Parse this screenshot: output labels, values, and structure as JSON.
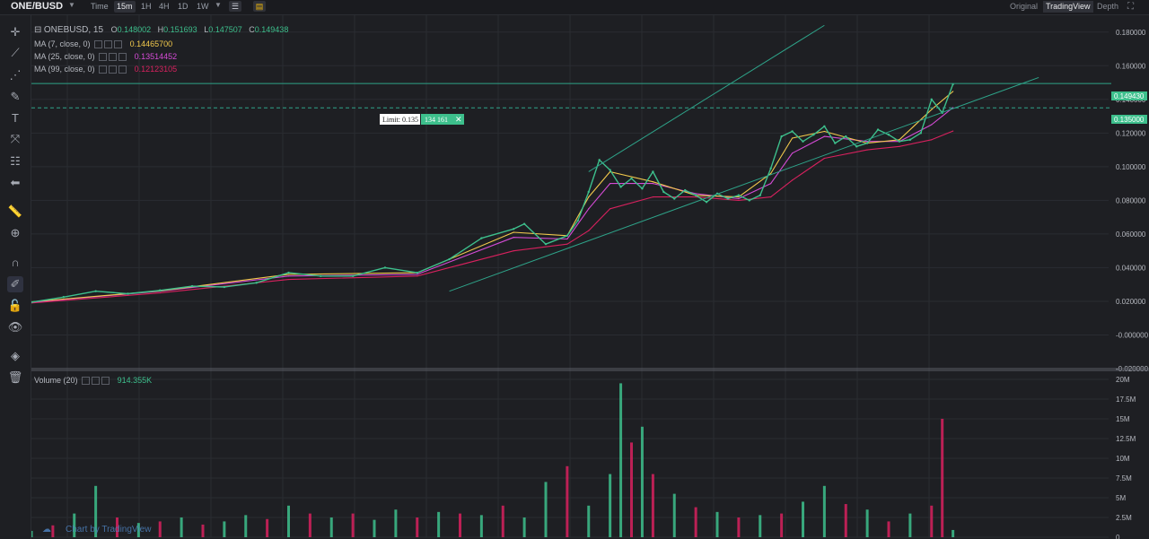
{
  "header": {
    "pair": "ONE/BUSD",
    "timeframes": [
      "Time",
      "15m",
      "1H",
      "4H",
      "1D",
      "1W"
    ],
    "active_timeframe": "15m",
    "views": [
      "Original",
      "TradingView",
      "Depth"
    ],
    "active_view": "TradingView"
  },
  "legend": {
    "symbol": "ONEBUSD, 15",
    "ohlc": {
      "open_label": "O",
      "open": "0.148002",
      "high_label": "H",
      "high": "0.151693",
      "low_label": "L",
      "low": "0.147507",
      "close_label": "C",
      "close": "0.149438"
    },
    "ma": [
      {
        "label": "MA (7, close, 0)",
        "value": "0.14465700",
        "color": "#f2c94c"
      },
      {
        "label": "MA (25, close, 0)",
        "value": "0.13514452",
        "color": "#d54bd6"
      },
      {
        "label": "MA (99, close, 0)",
        "value": "0.12123105",
        "color": "#d8215e"
      }
    ],
    "volume": {
      "label": "Volume (20)",
      "value": "914.355K",
      "color": "#3dbf8c"
    }
  },
  "order": {
    "limit_label": "Limit: 0.135",
    "qty": "134 161",
    "close_symbol": "✕"
  },
  "price_tags": {
    "last": "0.149430",
    "limit": "0.135000"
  },
  "watermark": "Chart by TradingView",
  "chart_data": [
    {
      "type": "line",
      "title": "ONEBUSD, 15",
      "ylim": [
        -0.02,
        0.19
      ],
      "y_ticks": [
        "0.180000",
        "0.160000",
        "0.140000",
        "0.120000",
        "0.100000",
        "0.080000",
        "0.060000",
        "0.040000",
        "0.020000",
        "-0.000000",
        "-0.020000"
      ],
      "y_tick_values": [
        0.18,
        0.16,
        0.14,
        0.12,
        0.1,
        0.08,
        0.06,
        0.04,
        0.02,
        0.0,
        -0.02
      ],
      "series": [
        {
          "name": "ONEBUSD",
          "color": "#3dbf8c",
          "x": [
            0,
            3,
            6,
            9,
            12,
            15,
            18,
            21,
            24,
            27,
            30,
            33,
            36,
            39,
            42,
            45,
            46,
            48,
            50,
            51,
            52,
            53,
            54,
            55,
            56,
            57,
            58,
            59,
            60,
            61,
            62,
            63,
            64,
            65,
            66,
            67,
            68,
            69,
            70,
            71,
            72,
            73,
            74,
            75,
            76,
            77,
            78,
            79,
            80,
            81,
            82,
            83,
            84,
            85,
            86
          ],
          "values": [
            0.0195,
            0.0225,
            0.026,
            0.0245,
            0.0265,
            0.029,
            0.0285,
            0.031,
            0.037,
            0.035,
            0.035,
            0.04,
            0.037,
            0.045,
            0.0575,
            0.063,
            0.066,
            0.054,
            0.059,
            0.068,
            0.085,
            0.104,
            0.098,
            0.088,
            0.093,
            0.087,
            0.097,
            0.085,
            0.081,
            0.086,
            0.083,
            0.079,
            0.084,
            0.081,
            0.083,
            0.08,
            0.083,
            0.099,
            0.118,
            0.121,
            0.115,
            0.119,
            0.124,
            0.114,
            0.118,
            0.112,
            0.114,
            0.122,
            0.119,
            0.115,
            0.116,
            0.12,
            0.14,
            0.132,
            0.149
          ]
        },
        {
          "name": "MA (7, close, 0)",
          "color": "#f2c94c",
          "x": [
            0,
            12,
            24,
            36,
            45,
            50,
            52,
            54,
            58,
            62,
            66,
            69,
            71,
            74,
            78,
            81,
            84,
            86
          ],
          "values": [
            0.0197,
            0.0262,
            0.036,
            0.037,
            0.061,
            0.059,
            0.082,
            0.097,
            0.091,
            0.083,
            0.082,
            0.096,
            0.117,
            0.121,
            0.114,
            0.116,
            0.134,
            0.1447
          ]
        },
        {
          "name": "MA (25, close, 0)",
          "color": "#d54bd6",
          "x": [
            0,
            12,
            24,
            36,
            45,
            50,
            52,
            54,
            58,
            62,
            66,
            69,
            71,
            74,
            78,
            81,
            84,
            86
          ],
          "values": [
            0.0195,
            0.026,
            0.035,
            0.036,
            0.058,
            0.057,
            0.075,
            0.09,
            0.09,
            0.084,
            0.081,
            0.09,
            0.108,
            0.118,
            0.115,
            0.115,
            0.125,
            0.1351
          ]
        },
        {
          "name": "MA (99, close, 0)",
          "color": "#d8215e",
          "x": [
            0,
            12,
            24,
            36,
            45,
            50,
            52,
            54,
            58,
            62,
            66,
            69,
            71,
            74,
            78,
            81,
            84,
            86
          ],
          "values": [
            0.019,
            0.025,
            0.033,
            0.035,
            0.05,
            0.054,
            0.062,
            0.075,
            0.082,
            0.082,
            0.08,
            0.082,
            0.092,
            0.105,
            0.11,
            0.112,
            0.116,
            0.1212
          ]
        }
      ],
      "hlines": [
        {
          "value": 0.14943,
          "style": "solid"
        },
        {
          "value": 0.135,
          "style": "dashed"
        }
      ],
      "channel_lines": [
        {
          "from": [
            52,
            0.097
          ],
          "to": [
            74,
            0.184
          ]
        },
        {
          "from": [
            39,
            0.026
          ],
          "to": [
            94,
            0.153
          ]
        }
      ]
    },
    {
      "type": "bar",
      "title": "Volume (20)",
      "ylim": [
        0,
        20000000
      ],
      "y_ticks": [
        "20M",
        "17.5M",
        "15M",
        "12.5M",
        "10M",
        "7.5M",
        "5M",
        "2.5M",
        "0"
      ],
      "y_tick_values": [
        20000000,
        17500000,
        15000000,
        12500000,
        10000000,
        7500000,
        5000000,
        2500000,
        0
      ],
      "up_color": "#3dbf8c",
      "down_color": "#d8215e",
      "x": [
        0,
        2,
        4,
        6,
        8,
        10,
        12,
        14,
        16,
        18,
        20,
        22,
        24,
        26,
        28,
        30,
        32,
        34,
        36,
        38,
        40,
        42,
        44,
        46,
        48,
        50,
        52,
        54,
        55,
        56,
        57,
        58,
        60,
        62,
        64,
        66,
        68,
        70,
        72,
        74,
        76,
        78,
        80,
        82,
        84,
        85,
        86
      ],
      "values": [
        800000,
        1500000,
        3000000,
        6500000,
        2500000,
        1800000,
        2000000,
        2500000,
        1600000,
        2000000,
        2800000,
        2300000,
        4000000,
        3000000,
        2500000,
        3000000,
        2200000,
        3500000,
        2500000,
        3200000,
        3000000,
        2800000,
        4000000,
        2500000,
        7000000,
        9000000,
        4000000,
        8000000,
        19500000,
        12000000,
        14000000,
        8000000,
        5500000,
        3800000,
        3200000,
        2500000,
        2800000,
        3000000,
        4500000,
        6500000,
        4200000,
        3500000,
        2000000,
        3000000,
        4000000,
        15000000,
        914355
      ],
      "directions": [
        "u",
        "d",
        "u",
        "u",
        "d",
        "u",
        "d",
        "u",
        "d",
        "u",
        "u",
        "d",
        "u",
        "d",
        "u",
        "d",
        "u",
        "u",
        "d",
        "u",
        "d",
        "u",
        "d",
        "u",
        "u",
        "d",
        "u",
        "u",
        "u",
        "d",
        "u",
        "d",
        "u",
        "d",
        "u",
        "d",
        "u",
        "d",
        "u",
        "u",
        "d",
        "u",
        "d",
        "u",
        "d",
        "d",
        "u"
      ]
    }
  ]
}
